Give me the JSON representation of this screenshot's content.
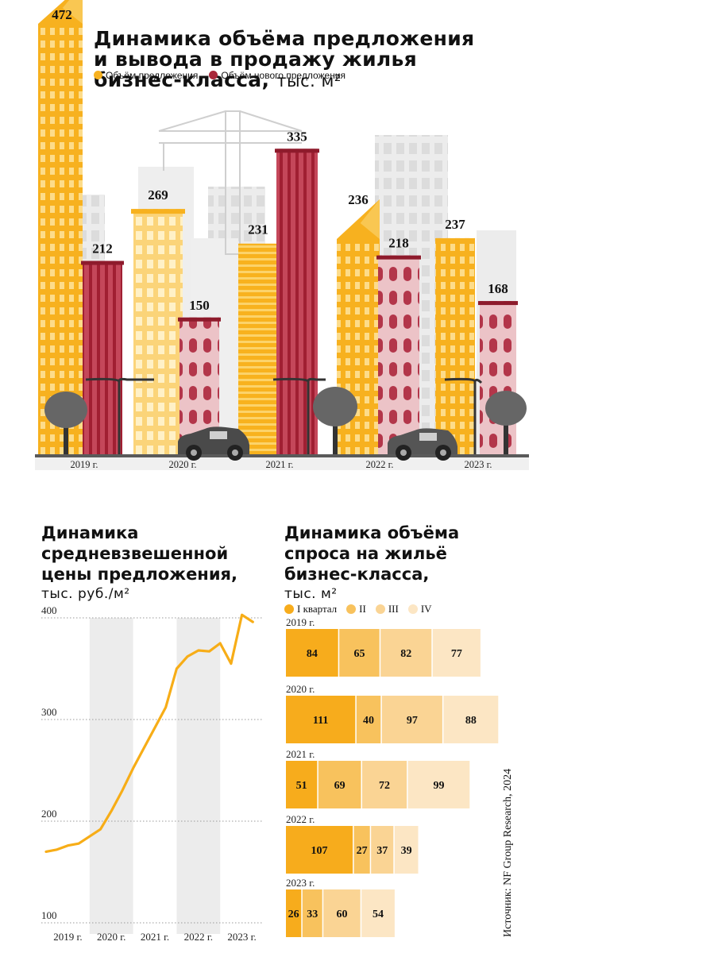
{
  "top": {
    "title": "Динамика объёма предложения\nи вывода в продажу жилья\nбизнес-класса,",
    "unit": "тыс. м²",
    "legend": [
      {
        "label": "Объём предложения",
        "color": "#f7b11f"
      },
      {
        "label": "Объём нового предложения",
        "color": "#a8273a"
      }
    ]
  },
  "price": {
    "title": "Динамика\nсредневзвешенной\nцены предложения,",
    "unit": "тыс. руб./м²"
  },
  "demand": {
    "title": "Динамика объёма\nспроса на жильё\nбизнес-класса,",
    "unit": "тыс. м²",
    "legend": [
      {
        "label": "I квартал",
        "color": "#f7ac1c"
      },
      {
        "label": "II",
        "color": "#f8c25d"
      },
      {
        "label": "III",
        "color": "#fad494"
      },
      {
        "label": "IV",
        "color": "#fce6c4"
      }
    ]
  },
  "source": "Источник: NF Group Research, 2024",
  "chart_data": [
    {
      "type": "bar",
      "title": "Динамика объёма предложения и вывода в продажу жилья бизнес-класса, тыс. м²",
      "categories": [
        "2019 г.",
        "2020 г.",
        "2021 г.",
        "2022 г.",
        "2023 г."
      ],
      "series": [
        {
          "name": "Объём предложения",
          "values": [
            472,
            269,
            231,
            236,
            237
          ]
        },
        {
          "name": "Объём нового предложения",
          "values": [
            212,
            150,
            335,
            218,
            168
          ]
        }
      ],
      "ylim": [
        0,
        472
      ]
    },
    {
      "type": "line",
      "title": "Динамика средневзвешенной цены предложения, тыс. руб./м²",
      "x_ticks": [
        "2019 г.",
        "2020 г.",
        "2021 г.",
        "2022 г.",
        "2023 г."
      ],
      "y_ticks": [
        100,
        200,
        300,
        400
      ],
      "ylim": [
        100,
        400
      ],
      "x": [
        2019.0,
        2019.25,
        2019.5,
        2019.75,
        2020.0,
        2020.25,
        2020.5,
        2020.75,
        2021.0,
        2021.25,
        2021.5,
        2021.75,
        2022.0,
        2022.25,
        2022.5,
        2022.75,
        2023.0,
        2023.25,
        2023.5,
        2023.75
      ],
      "series": [
        {
          "values": [
            170,
            172,
            176,
            178,
            185,
            192,
            210,
            230,
            252,
            272,
            292,
            312,
            350,
            362,
            368,
            367,
            375,
            355,
            403,
            396
          ]
        }
      ]
    },
    {
      "type": "bar",
      "title": "Динамика объёма спроса на жильё бизнес-класса, тыс. м²",
      "orientation": "horizontal-stacked",
      "categories": [
        "2019 г.",
        "2020 г.",
        "2021 г.",
        "2022 г.",
        "2023 г."
      ],
      "series": [
        {
          "name": "I квартал",
          "values": [
            84,
            111,
            51,
            107,
            26
          ]
        },
        {
          "name": "II",
          "values": [
            65,
            40,
            69,
            27,
            33
          ]
        },
        {
          "name": "III",
          "values": [
            82,
            97,
            72,
            37,
            60
          ]
        },
        {
          "name": "IV",
          "values": [
            77,
            88,
            99,
            39,
            54
          ]
        }
      ]
    }
  ]
}
